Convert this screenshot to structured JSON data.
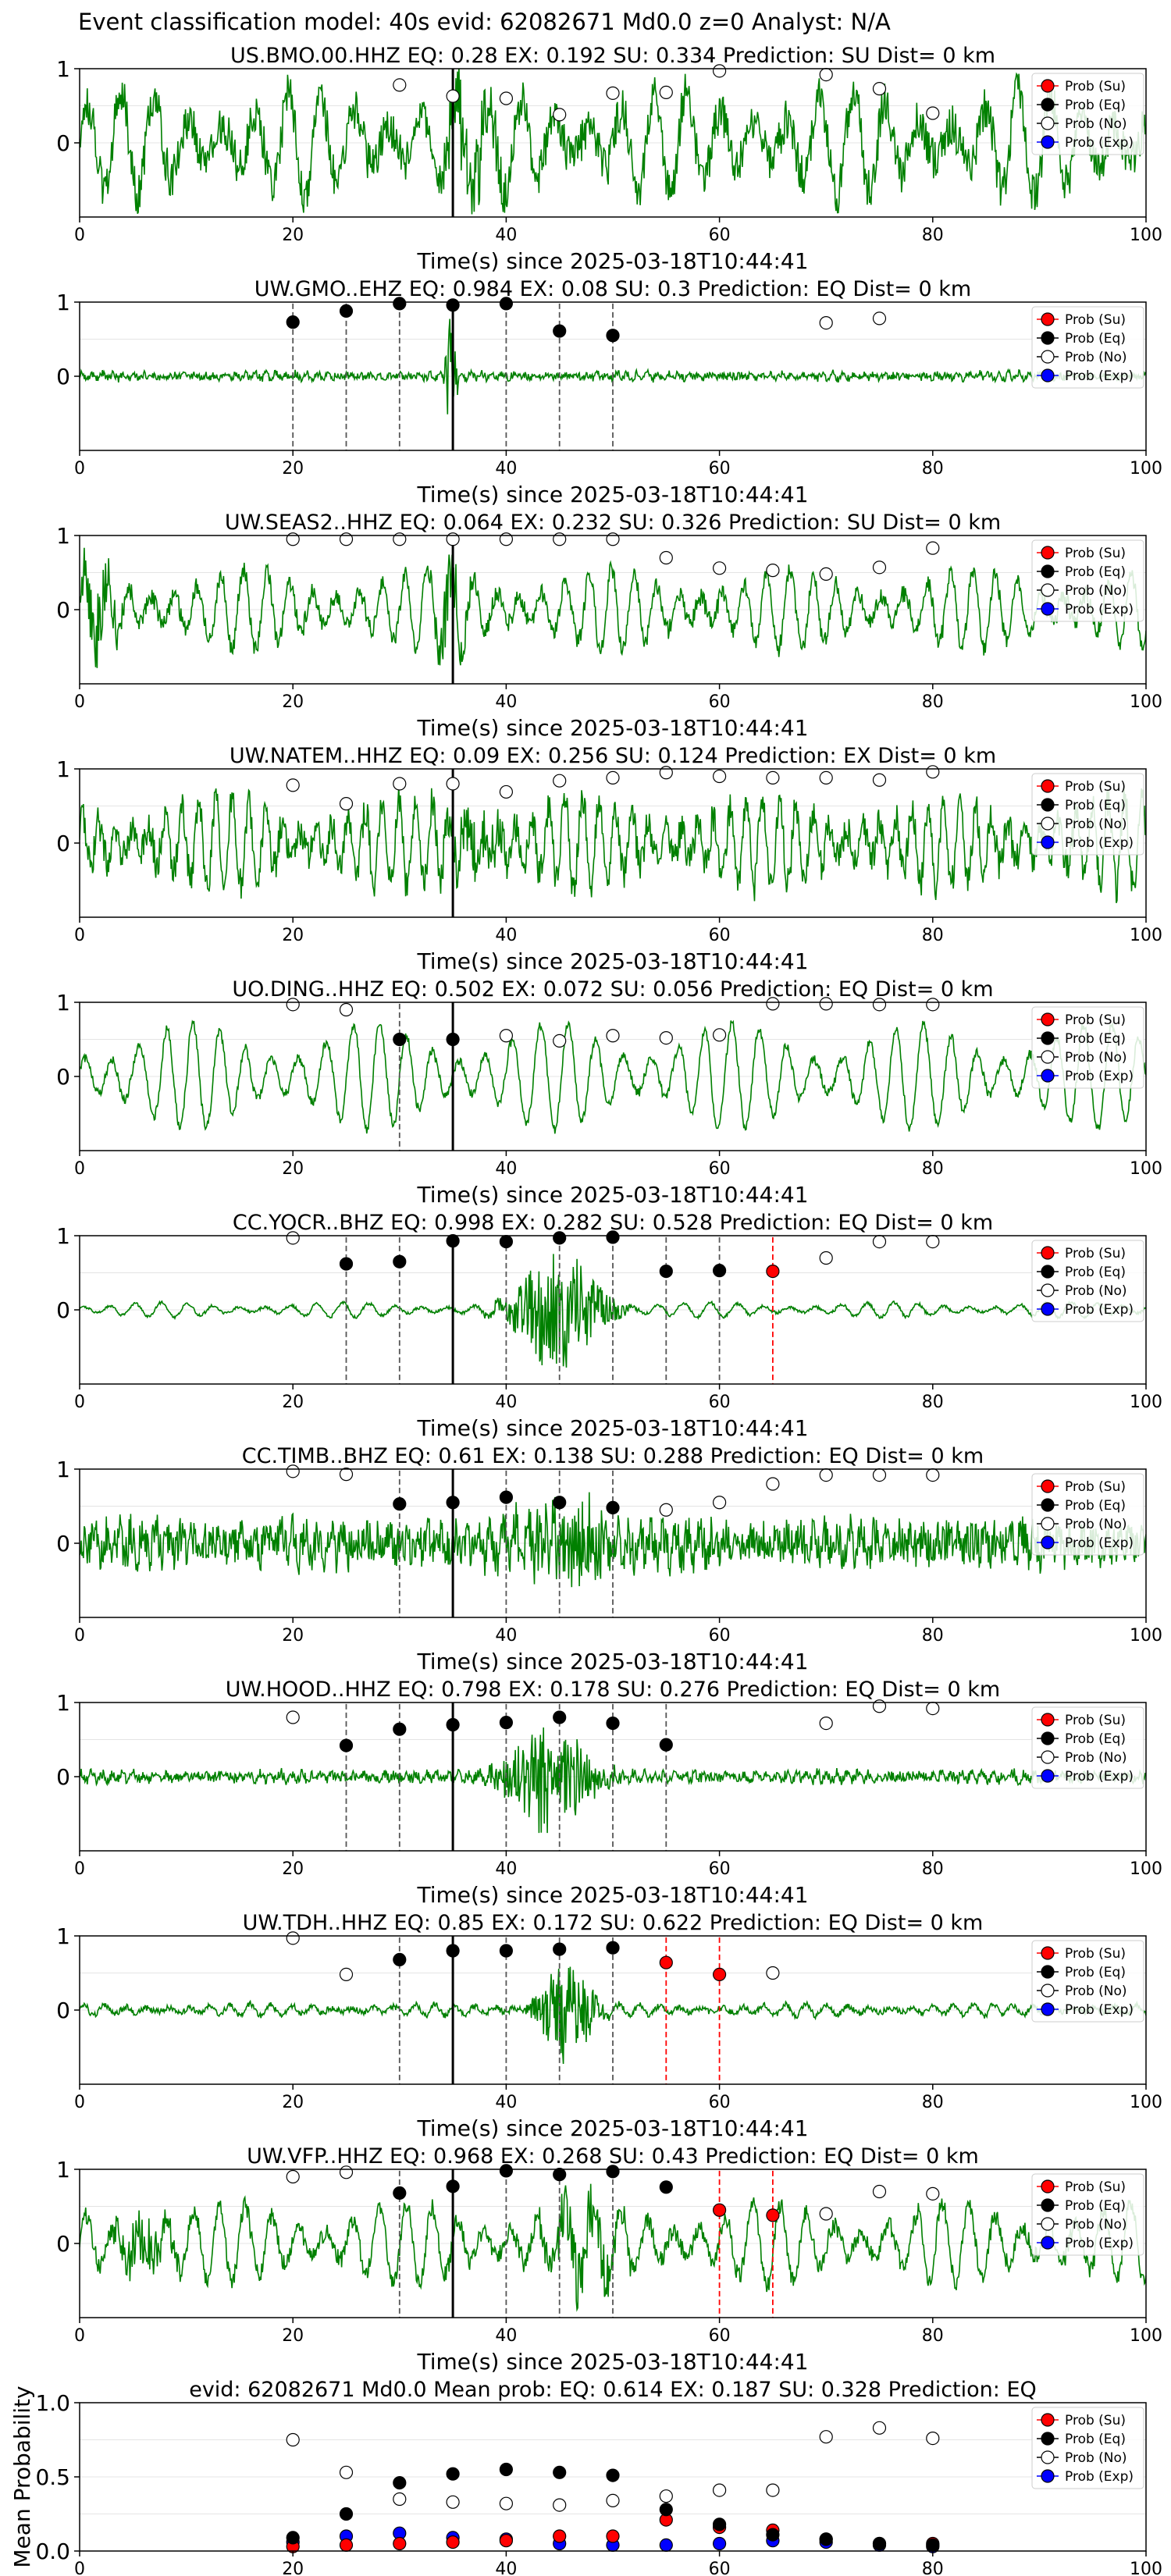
{
  "figure_title": "Event classification model: 40s evid: 62082671 Md0.0 z=0 Analyst: N/A",
  "colors": {
    "waveform": "#008000",
    "su": "#ff0000",
    "eq": "#000000",
    "no": "#ffffff",
    "exp": "#0000ff",
    "su_line": "#ff0000",
    "eq_line": "#555555",
    "pick": "#000000"
  },
  "legend_labels": [
    "Prob (Su)",
    "Prob (Eq)",
    "Prob (No)",
    "Prob (Exp)"
  ],
  "chart_data": [
    {
      "type": "line",
      "title": "US.BMO.00.HHZ   EQ: 0.28   EX: 0.192   SU: 0.334   Prediction: SU    Dist= 0 km",
      "xlabel": "Time(s) since 2025-03-18T10:44:41",
      "xlim": [
        0,
        100
      ],
      "ylim": [
        -1,
        1
      ],
      "xticks": [
        "0",
        "20",
        "40",
        "60",
        "80",
        "100"
      ],
      "yticks": [
        "0",
        "1"
      ],
      "pick_time": 35,
      "waveform": {
        "amplitude": 0.72,
        "noise": 0.28,
        "period": 3.2,
        "bursts": [
          {
            "t": 37,
            "w": 3,
            "a": 0.5
          }
        ]
      },
      "prob_no": [
        [
          30,
          0.78
        ],
        [
          35,
          0.63
        ],
        [
          40,
          0.6
        ],
        [
          45,
          0.38
        ],
        [
          50,
          0.67
        ],
        [
          55,
          0.68
        ],
        [
          60,
          0.97
        ],
        [
          70,
          0.92
        ],
        [
          75,
          0.73
        ],
        [
          80,
          0.4
        ]
      ],
      "prob_eq": [],
      "prob_su": [],
      "prob_exp": [],
      "eq_lines": [],
      "su_lines": [],
      "legend": "upper right",
      "grid": true
    },
    {
      "type": "line",
      "title": "UW.GMO..EHZ   EQ: 0.984   EX: 0.08   SU: 0.3   Prediction: EQ    Dist= 0 km",
      "xlabel": "Time(s) since 2025-03-18T10:44:41",
      "xlim": [
        0,
        100
      ],
      "ylim": [
        -1,
        1
      ],
      "xticks": [
        "0",
        "20",
        "40",
        "60",
        "80",
        "100"
      ],
      "yticks": [
        "0",
        "1"
      ],
      "pick_time": 35,
      "waveform": {
        "amplitude": 0.04,
        "noise": 0.05,
        "period": 1.0,
        "bursts": [
          {
            "t": 34.8,
            "w": 0.5,
            "a": 0.95
          }
        ]
      },
      "prob_eq": [
        [
          20,
          0.73
        ],
        [
          25,
          0.88
        ],
        [
          30,
          0.98
        ],
        [
          35,
          0.96
        ],
        [
          40,
          0.98
        ],
        [
          45,
          0.61
        ],
        [
          50,
          0.55
        ]
      ],
      "prob_no": [
        [
          70,
          0.72
        ],
        [
          75,
          0.78
        ]
      ],
      "prob_su": [],
      "prob_exp": [],
      "eq_lines": [
        20,
        25,
        30,
        40,
        45,
        50
      ],
      "su_lines": [],
      "legend": "upper right",
      "grid": true
    },
    {
      "type": "line",
      "title": "UW.SEAS2..HHZ   EQ: 0.064   EX: 0.232   SU: 0.326   Prediction: SU    Dist= 0 km",
      "xlabel": "Time(s) since 2025-03-18T10:44:41",
      "xlim": [
        0,
        100
      ],
      "ylim": [
        -1,
        1
      ],
      "xticks": [
        "0",
        "20",
        "40",
        "60",
        "80",
        "100"
      ],
      "yticks": [
        "0",
        "1"
      ],
      "pick_time": 35,
      "waveform": {
        "amplitude": 0.55,
        "noise": 0.12,
        "period": 2.2,
        "bursts": [
          {
            "t": 2,
            "w": 2,
            "a": 0.5
          },
          {
            "t": 35,
            "w": 1.5,
            "a": 0.5
          }
        ]
      },
      "prob_no": [
        [
          20,
          0.95
        ],
        [
          25,
          0.95
        ],
        [
          30,
          0.95
        ],
        [
          35,
          0.95
        ],
        [
          40,
          0.95
        ],
        [
          45,
          0.95
        ],
        [
          50,
          0.95
        ],
        [
          55,
          0.7
        ],
        [
          60,
          0.56
        ],
        [
          65,
          0.53
        ],
        [
          70,
          0.48
        ],
        [
          75,
          0.57
        ],
        [
          80,
          0.83
        ]
      ],
      "prob_eq": [],
      "prob_su": [],
      "prob_exp": [],
      "eq_lines": [],
      "su_lines": [],
      "legend": "upper right",
      "grid": true
    },
    {
      "type": "line",
      "title": "UW.NATEM..HHZ   EQ: 0.09   EX: 0.256   SU: 0.124   Prediction: EX    Dist= 0 km",
      "xlabel": "Time(s) since 2025-03-18T10:44:41",
      "xlim": [
        0,
        100
      ],
      "ylim": [
        -1,
        1
      ],
      "xticks": [
        "0",
        "20",
        "40",
        "60",
        "80",
        "100"
      ],
      "yticks": [
        "0",
        "1"
      ],
      "pick_time": 35,
      "waveform": {
        "amplitude": 0.6,
        "noise": 0.22,
        "period": 1.6,
        "bursts": [
          {
            "t": 37,
            "w": 3,
            "a": 0.4
          }
        ]
      },
      "prob_no": [
        [
          20,
          0.78
        ],
        [
          25,
          0.53
        ],
        [
          30,
          0.8
        ],
        [
          35,
          0.8
        ],
        [
          40,
          0.69
        ],
        [
          45,
          0.84
        ],
        [
          50,
          0.88
        ],
        [
          55,
          0.95
        ],
        [
          60,
          0.9
        ],
        [
          65,
          0.88
        ],
        [
          70,
          0.88
        ],
        [
          75,
          0.85
        ],
        [
          80,
          0.96
        ]
      ],
      "prob_eq": [],
      "prob_su": [],
      "prob_exp": [],
      "eq_lines": [],
      "su_lines": [],
      "legend": "upper right",
      "grid": true
    },
    {
      "type": "line",
      "title": "UO.DING..HHZ   EQ: 0.502   EX: 0.072   SU: 0.056   Prediction: EQ    Dist= 0 km",
      "xlabel": "Time(s) since 2025-03-18T10:44:41",
      "xlim": [
        0,
        100
      ],
      "ylim": [
        -1,
        1
      ],
      "xticks": [
        "0",
        "20",
        "40",
        "60",
        "80",
        "100"
      ],
      "yticks": [
        "0",
        "1"
      ],
      "pick_time": 35,
      "waveform": {
        "amplitude": 0.72,
        "noise": 0.06,
        "period": 2.6,
        "bursts": []
      },
      "prob_no": [
        [
          20,
          0.97
        ],
        [
          25,
          0.9
        ],
        [
          40,
          0.55
        ],
        [
          45,
          0.48
        ],
        [
          50,
          0.55
        ],
        [
          55,
          0.52
        ],
        [
          60,
          0.56
        ],
        [
          65,
          0.98
        ],
        [
          70,
          0.98
        ],
        [
          75,
          0.97
        ],
        [
          80,
          0.97
        ]
      ],
      "prob_eq": [
        [
          30,
          0.5
        ],
        [
          35,
          0.5
        ]
      ],
      "prob_su": [],
      "prob_exp": [],
      "eq_lines": [
        30
      ],
      "su_lines": [],
      "legend": "upper right",
      "grid": true
    },
    {
      "type": "line",
      "title": "CC.YOCR..BHZ   EQ: 0.998   EX: 0.282   SU: 0.528   Prediction: EQ    Dist= 0 km",
      "xlabel": "Time(s) since 2025-03-18T10:44:41",
      "xlim": [
        0,
        100
      ],
      "ylim": [
        -1,
        1
      ],
      "xticks": [
        "0",
        "20",
        "40",
        "60",
        "80",
        "100"
      ],
      "yticks": [
        "0",
        "1"
      ],
      "pick_time": 35,
      "waveform": {
        "amplitude": 0.1,
        "noise": 0.02,
        "period": 2.5,
        "bursts": [
          {
            "t": 45,
            "w": 4,
            "a": 0.8
          }
        ]
      },
      "prob_no": [
        [
          20,
          0.97
        ],
        [
          70,
          0.7
        ],
        [
          75,
          0.92
        ],
        [
          80,
          0.92
        ]
      ],
      "prob_eq": [
        [
          25,
          0.62
        ],
        [
          30,
          0.65
        ],
        [
          35,
          0.93
        ],
        [
          40,
          0.92
        ],
        [
          45,
          0.97
        ],
        [
          50,
          0.98
        ],
        [
          55,
          0.52
        ],
        [
          60,
          0.53
        ]
      ],
      "prob_su": [
        [
          65,
          0.52
        ]
      ],
      "prob_exp": [],
      "eq_lines": [
        25,
        30,
        40,
        45,
        50,
        55,
        60
      ],
      "su_lines": [
        65
      ],
      "legend": "upper right",
      "grid": true
    },
    {
      "type": "line",
      "title": "CC.TIMB..BHZ   EQ: 0.61   EX: 0.138   SU: 0.288   Prediction: EQ    Dist= 0 km",
      "xlabel": "Time(s) since 2025-03-18T10:44:41",
      "xlim": [
        0,
        100
      ],
      "ylim": [
        -1,
        1
      ],
      "xticks": [
        "0",
        "20",
        "40",
        "60",
        "80",
        "100"
      ],
      "yticks": [
        "0",
        "1"
      ],
      "pick_time": 35,
      "waveform": {
        "amplitude": 0.16,
        "noise": 0.28,
        "period": 1.2,
        "bursts": [
          {
            "t": 46,
            "w": 5,
            "a": 0.5
          }
        ]
      },
      "prob_no": [
        [
          20,
          0.97
        ],
        [
          25,
          0.93
        ],
        [
          55,
          0.45
        ],
        [
          60,
          0.55
        ],
        [
          65,
          0.8
        ],
        [
          70,
          0.92
        ],
        [
          75,
          0.92
        ],
        [
          80,
          0.92
        ]
      ],
      "prob_eq": [
        [
          30,
          0.53
        ],
        [
          35,
          0.55
        ],
        [
          40,
          0.62
        ],
        [
          45,
          0.55
        ],
        [
          50,
          0.48
        ]
      ],
      "prob_su": [],
      "prob_exp": [],
      "eq_lines": [
        30,
        40,
        45,
        50
      ],
      "su_lines": [],
      "legend": "upper right",
      "grid": true
    },
    {
      "type": "line",
      "title": "UW.HOOD..HHZ   EQ: 0.798   EX: 0.178   SU: 0.276   Prediction: EQ    Dist= 0 km",
      "xlabel": "Time(s) since 2025-03-18T10:44:41",
      "xlim": [
        0,
        100
      ],
      "ylim": [
        -1,
        1
      ],
      "xticks": [
        "0",
        "20",
        "40",
        "60",
        "80",
        "100"
      ],
      "yticks": [
        "0",
        "1"
      ],
      "pick_time": 35,
      "waveform": {
        "amplitude": 0.05,
        "noise": 0.07,
        "period": 1.0,
        "bursts": [
          {
            "t": 44,
            "w": 4,
            "a": 0.75
          }
        ]
      },
      "prob_no": [
        [
          20,
          0.8
        ],
        [
          70,
          0.72
        ],
        [
          75,
          0.95
        ],
        [
          80,
          0.92
        ]
      ],
      "prob_eq": [
        [
          25,
          0.42
        ],
        [
          30,
          0.64
        ],
        [
          35,
          0.7
        ],
        [
          40,
          0.73
        ],
        [
          45,
          0.8
        ],
        [
          50,
          0.72
        ],
        [
          55,
          0.43
        ]
      ],
      "prob_su": [],
      "prob_exp": [],
      "eq_lines": [
        25,
        30,
        40,
        45,
        50,
        55
      ],
      "su_lines": [],
      "legend": "upper right",
      "grid": true
    },
    {
      "type": "line",
      "title": "UW.TDH..HHZ   EQ: 0.85   EX: 0.172   SU: 0.622   Prediction: EQ    Dist= 0 km",
      "xlabel": "Time(s) since 2025-03-18T10:44:41",
      "xlim": [
        0,
        100
      ],
      "ylim": [
        -1,
        1
      ],
      "xticks": [
        "0",
        "20",
        "40",
        "60",
        "80",
        "100"
      ],
      "yticks": [
        "0",
        "1"
      ],
      "pick_time": 35,
      "waveform": {
        "amplitude": 0.08,
        "noise": 0.04,
        "period": 2.0,
        "bursts": [
          {
            "t": 45.5,
            "w": 2.5,
            "a": 0.7
          }
        ]
      },
      "prob_no": [
        [
          20,
          0.97
        ],
        [
          25,
          0.48
        ],
        [
          65,
          0.5
        ]
      ],
      "prob_eq": [
        [
          30,
          0.68
        ],
        [
          35,
          0.8
        ],
        [
          40,
          0.8
        ],
        [
          45,
          0.82
        ],
        [
          50,
          0.84
        ]
      ],
      "prob_su": [
        [
          55,
          0.64
        ],
        [
          60,
          0.48
        ]
      ],
      "prob_exp": [],
      "eq_lines": [
        30,
        40,
        45,
        50
      ],
      "su_lines": [
        55,
        60
      ],
      "legend": "upper right",
      "grid": true
    },
    {
      "type": "line",
      "title": "UW.VFP..HHZ   EQ: 0.968   EX: 0.268   SU: 0.43   Prediction: EQ    Dist= 0 km",
      "xlabel": "Time(s) since 2025-03-18T10:44:41",
      "xlim": [
        0,
        100
      ],
      "ylim": [
        -1,
        1
      ],
      "xticks": [
        "0",
        "20",
        "40",
        "60",
        "80",
        "100"
      ],
      "yticks": [
        "0",
        "1"
      ],
      "pick_time": 35,
      "waveform": {
        "amplitude": 0.55,
        "noise": 0.12,
        "period": 2.6,
        "bursts": [
          {
            "t": 47,
            "w": 4,
            "a": 0.4
          },
          {
            "t": 6,
            "w": 3,
            "a": 0.35
          }
        ]
      },
      "prob_no": [
        [
          20,
          0.9
        ],
        [
          25,
          0.96
        ],
        [
          70,
          0.4
        ],
        [
          75,
          0.7
        ],
        [
          80,
          0.67
        ]
      ],
      "prob_eq": [
        [
          30,
          0.68
        ],
        [
          35,
          0.77
        ],
        [
          40,
          0.98
        ],
        [
          45,
          0.93
        ],
        [
          50,
          0.97
        ],
        [
          55,
          0.76
        ]
      ],
      "prob_su": [
        [
          60,
          0.45
        ],
        [
          65,
          0.38
        ]
      ],
      "prob_exp": [],
      "eq_lines": [
        30,
        40,
        45,
        50
      ],
      "su_lines": [
        60,
        65
      ],
      "legend": "upper right",
      "grid": true
    },
    {
      "type": "scatter",
      "title": "evid: 62082671   Md0.0   Mean prob:   EQ: 0.614  EX: 0.187  SU: 0.328   Prediction: EQ",
      "xlabel": "",
      "ylabel": "Mean Probability",
      "xlim": [
        0,
        100
      ],
      "ylim": [
        0,
        1
      ],
      "xticks": [
        "0",
        "20",
        "40",
        "60",
        "80",
        "100"
      ],
      "yticks": [
        "0.0",
        "0.5",
        "1.0"
      ],
      "prob_no": [
        [
          20,
          0.75
        ],
        [
          25,
          0.53
        ],
        [
          30,
          0.35
        ],
        [
          35,
          0.33
        ],
        [
          40,
          0.32
        ],
        [
          45,
          0.31
        ],
        [
          50,
          0.34
        ],
        [
          55,
          0.37
        ],
        [
          60,
          0.41
        ],
        [
          65,
          0.41
        ],
        [
          70,
          0.77
        ],
        [
          75,
          0.83
        ],
        [
          80,
          0.76
        ]
      ],
      "prob_eq": [
        [
          20,
          0.09
        ],
        [
          25,
          0.25
        ],
        [
          30,
          0.46
        ],
        [
          35,
          0.52
        ],
        [
          40,
          0.55
        ],
        [
          45,
          0.53
        ],
        [
          50,
          0.51
        ],
        [
          55,
          0.28
        ],
        [
          60,
          0.18
        ],
        [
          65,
          0.11
        ],
        [
          70,
          0.08
        ],
        [
          75,
          0.05
        ],
        [
          80,
          0.04
        ]
      ],
      "prob_su": [
        [
          20,
          0.03
        ],
        [
          25,
          0.04
        ],
        [
          30,
          0.05
        ],
        [
          35,
          0.06
        ],
        [
          40,
          0.07
        ],
        [
          45,
          0.1
        ],
        [
          50,
          0.1
        ],
        [
          55,
          0.21
        ],
        [
          60,
          0.16
        ],
        [
          65,
          0.14
        ],
        [
          70,
          0.08
        ],
        [
          75,
          0.05
        ],
        [
          80,
          0.05
        ]
      ],
      "prob_exp": [
        [
          20,
          0.06
        ],
        [
          25,
          0.1
        ],
        [
          30,
          0.12
        ],
        [
          35,
          0.09
        ],
        [
          40,
          0.08
        ],
        [
          45,
          0.05
        ],
        [
          50,
          0.04
        ],
        [
          55,
          0.04
        ],
        [
          60,
          0.05
        ],
        [
          65,
          0.07
        ],
        [
          70,
          0.06
        ],
        [
          75,
          0.04
        ],
        [
          80,
          0.03
        ]
      ],
      "legend": "upper right",
      "grid": true
    }
  ]
}
